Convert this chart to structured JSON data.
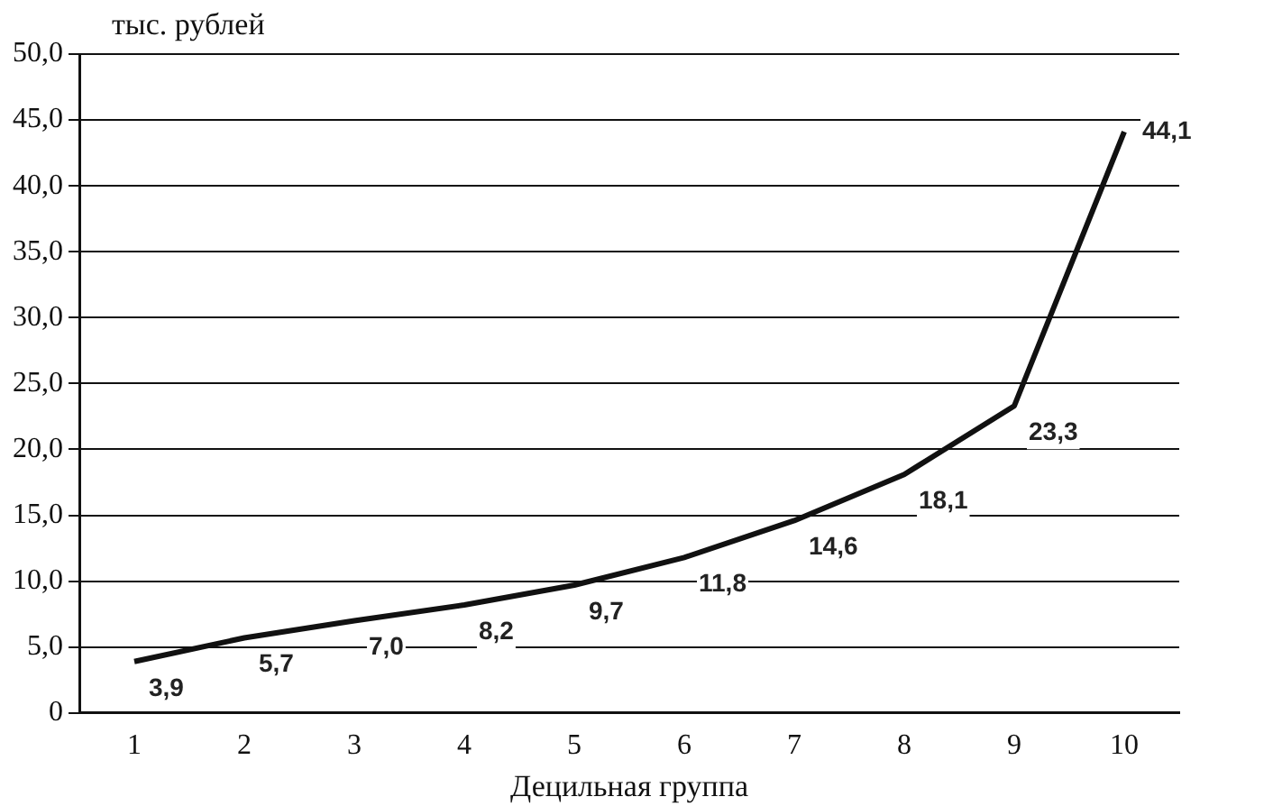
{
  "chart_data": {
    "type": "line",
    "ylabel": "тыс. рублей",
    "xlabel": "Децильная группа",
    "categories": [
      "1",
      "2",
      "3",
      "4",
      "5",
      "6",
      "7",
      "8",
      "9",
      "10"
    ],
    "series": [
      {
        "color": "#111111",
        "values": [
          3.9,
          5.7,
          7.0,
          8.2,
          9.7,
          11.8,
          14.6,
          18.1,
          23.3,
          44.1
        ],
        "value_labels": [
          "3,9",
          "5,7",
          "7,0",
          "8,2",
          "9,7",
          "11,8",
          "14,6",
          "18,1",
          "23,3",
          "44,1"
        ]
      }
    ],
    "ylim": [
      0,
      50
    ],
    "yticks": [
      {
        "value": 0,
        "label": "0"
      },
      {
        "value": 5,
        "label": "5,0"
      },
      {
        "value": 10,
        "label": "10,0"
      },
      {
        "value": 15,
        "label": "15,0"
      },
      {
        "value": 20,
        "label": "20,0"
      },
      {
        "value": 25,
        "label": "25,0"
      },
      {
        "value": 30,
        "label": "30,0"
      },
      {
        "value": 35,
        "label": "35,0"
      },
      {
        "value": 40,
        "label": "40,0"
      },
      {
        "value": 45,
        "label": "45,0"
      },
      {
        "value": 50,
        "label": "50,0"
      }
    ],
    "grid": "y",
    "marker": "none",
    "line_style": "solid",
    "legend": false
  }
}
